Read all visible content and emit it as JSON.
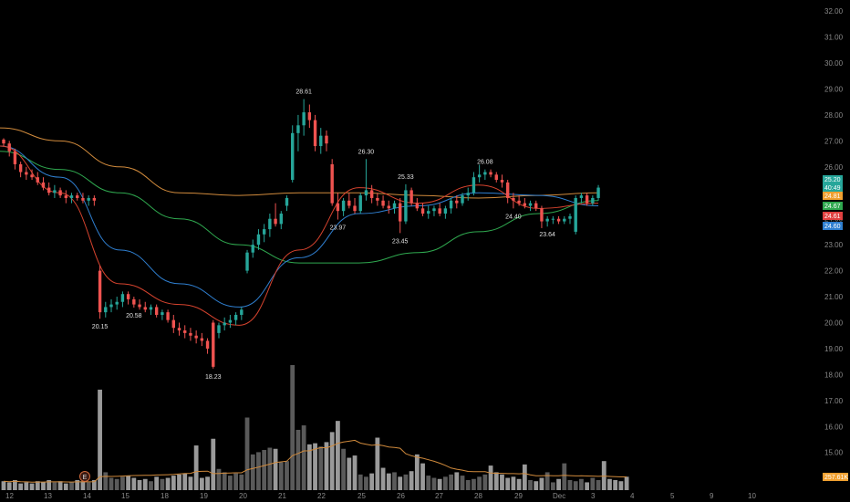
{
  "chart_data": {
    "type": "candlestick",
    "y_axis": {
      "labels": [
        "32.00",
        "31.00",
        "30.00",
        "29.00",
        "28.00",
        "27.00",
        "26.00",
        "25.00",
        "24.00",
        "23.00",
        "22.00",
        "21.00",
        "20.00",
        "19.00",
        "18.00",
        "17.00",
        "16.00",
        "15.00",
        "14.00"
      ],
      "values": [
        32,
        31,
        30,
        29,
        28,
        27,
        26,
        25,
        24,
        23,
        22,
        21,
        20,
        19,
        18,
        17,
        16,
        15,
        14
      ],
      "range": [
        13.55,
        32.25
      ]
    },
    "x_axis": {
      "labels": [
        "12",
        "13",
        "14",
        "15",
        "18",
        "19",
        "20",
        "21",
        "22",
        "25",
        "26",
        "27",
        "28",
        "29",
        "Dec",
        "3",
        "4",
        "5",
        "9",
        "10"
      ]
    },
    "candles": [
      [
        27.05,
        27.1,
        26.8,
        26.9
      ],
      [
        26.9,
        27.0,
        26.4,
        26.6
      ],
      [
        26.6,
        26.7,
        25.9,
        26.1
      ],
      [
        26.1,
        26.2,
        25.6,
        25.8
      ],
      [
        25.8,
        26.0,
        25.5,
        25.7
      ],
      [
        25.7,
        25.9,
        25.5,
        25.6
      ],
      [
        25.6,
        25.8,
        25.3,
        25.4
      ],
      [
        25.4,
        25.6,
        25.1,
        25.2
      ],
      [
        25.2,
        25.4,
        24.9,
        25.0
      ],
      [
        25.0,
        25.3,
        24.8,
        25.1
      ],
      [
        25.1,
        25.2,
        24.8,
        24.9
      ],
      [
        24.9,
        25.1,
        24.6,
        24.8
      ],
      [
        24.8,
        25.0,
        24.6,
        24.9
      ],
      [
        24.9,
        25.0,
        24.7,
        24.8
      ],
      [
        24.8,
        25.0,
        24.6,
        24.7
      ],
      [
        24.7,
        24.9,
        24.5,
        24.8
      ],
      [
        24.8,
        24.9,
        24.5,
        24.7
      ],
      [
        22.0,
        22.2,
        20.15,
        20.4
      ],
      [
        20.4,
        20.8,
        20.2,
        20.6
      ],
      [
        20.6,
        20.9,
        20.4,
        20.7
      ],
      [
        20.7,
        21.0,
        20.5,
        20.8
      ],
      [
        20.8,
        21.2,
        20.6,
        21.1
      ],
      [
        21.1,
        21.2,
        20.7,
        20.9
      ],
      [
        20.9,
        21.0,
        20.58,
        20.7
      ],
      [
        20.7,
        20.9,
        20.5,
        20.6
      ],
      [
        20.6,
        20.8,
        20.4,
        20.5
      ],
      [
        20.5,
        20.7,
        20.3,
        20.6
      ],
      [
        20.6,
        20.7,
        20.2,
        20.3
      ],
      [
        20.3,
        20.5,
        20.1,
        20.4
      ],
      [
        20.4,
        20.5,
        20.0,
        20.1
      ],
      [
        20.1,
        20.3,
        19.6,
        19.8
      ],
      [
        19.8,
        20.0,
        19.5,
        19.7
      ],
      [
        19.7,
        19.9,
        19.4,
        19.6
      ],
      [
        19.6,
        19.8,
        19.3,
        19.5
      ],
      [
        19.5,
        19.7,
        19.2,
        19.4
      ],
      [
        19.4,
        19.6,
        19.1,
        19.3
      ],
      [
        19.3,
        19.4,
        18.8,
        19.0
      ],
      [
        20.0,
        20.1,
        18.23,
        18.3
      ],
      [
        19.6,
        20.0,
        19.4,
        19.9
      ],
      [
        19.9,
        20.2,
        19.7,
        20.0
      ],
      [
        20.0,
        20.3,
        19.8,
        20.1
      ],
      [
        20.1,
        20.4,
        19.9,
        20.3
      ],
      [
        20.3,
        20.6,
        20.1,
        20.5
      ],
      [
        22.0,
        22.8,
        21.9,
        22.7
      ],
      [
        22.7,
        23.2,
        22.5,
        23.0
      ],
      [
        23.0,
        23.6,
        22.8,
        23.4
      ],
      [
        23.4,
        23.8,
        23.1,
        23.6
      ],
      [
        23.6,
        24.2,
        23.3,
        24.0
      ],
      [
        24.0,
        24.6,
        23.7,
        23.8
      ],
      [
        23.8,
        24.3,
        23.6,
        24.2
      ],
      [
        24.5,
        24.9,
        24.3,
        24.8
      ],
      [
        25.5,
        27.6,
        25.4,
        27.3
      ],
      [
        27.3,
        28.0,
        26.6,
        27.6
      ],
      [
        27.6,
        28.61,
        27.2,
        28.1
      ],
      [
        28.1,
        28.4,
        27.5,
        27.8
      ],
      [
        27.8,
        28.0,
        26.6,
        26.8
      ],
      [
        26.8,
        27.5,
        26.5,
        27.2
      ],
      [
        27.2,
        27.4,
        26.6,
        26.9
      ],
      [
        26.1,
        26.3,
        24.5,
        24.6
      ],
      [
        24.6,
        25.0,
        23.97,
        24.3
      ],
      [
        24.3,
        24.8,
        24.1,
        24.7
      ],
      [
        24.7,
        25.0,
        24.4,
        24.5
      ],
      [
        24.5,
        24.8,
        24.2,
        24.3
      ],
      [
        24.3,
        25.0,
        24.2,
        24.9
      ],
      [
        24.9,
        26.3,
        24.7,
        25.1
      ],
      [
        25.1,
        25.3,
        24.6,
        24.8
      ],
      [
        24.8,
        25.0,
        24.5,
        24.7
      ],
      [
        24.7,
        24.9,
        24.4,
        24.5
      ],
      [
        24.5,
        24.7,
        24.2,
        24.4
      ],
      [
        24.4,
        24.7,
        24.2,
        24.6
      ],
      [
        24.6,
        24.8,
        23.45,
        23.9
      ],
      [
        23.9,
        25.33,
        23.8,
        25.1
      ],
      [
        25.1,
        25.2,
        24.5,
        24.6
      ],
      [
        24.6,
        24.8,
        24.3,
        24.4
      ],
      [
        24.4,
        24.6,
        24.1,
        24.2
      ],
      [
        24.2,
        24.5,
        24.0,
        24.3
      ],
      [
        24.3,
        24.5,
        24.1,
        24.4
      ],
      [
        24.4,
        24.6,
        24.1,
        24.2
      ],
      [
        24.2,
        24.5,
        24.0,
        24.4
      ],
      [
        24.4,
        24.8,
        24.2,
        24.7
      ],
      [
        24.7,
        24.9,
        24.4,
        24.6
      ],
      [
        24.6,
        25.0,
        24.5,
        24.9
      ],
      [
        24.9,
        25.2,
        24.7,
        25.0
      ],
      [
        25.0,
        25.8,
        24.9,
        25.6
      ],
      [
        25.6,
        26.08,
        25.4,
        25.7
      ],
      [
        25.7,
        25.9,
        25.5,
        25.8
      ],
      [
        25.8,
        25.9,
        25.6,
        25.7
      ],
      [
        25.7,
        25.8,
        25.4,
        25.5
      ],
      [
        25.5,
        25.7,
        25.2,
        25.4
      ],
      [
        25.4,
        25.5,
        24.6,
        24.8
      ],
      [
        24.8,
        25.0,
        24.4,
        24.7
      ],
      [
        24.7,
        24.9,
        24.5,
        24.6
      ],
      [
        24.6,
        24.8,
        24.4,
        24.5
      ],
      [
        24.5,
        24.7,
        24.3,
        24.6
      ],
      [
        24.6,
        24.7,
        24.3,
        24.4
      ],
      [
        24.4,
        24.5,
        23.64,
        23.9
      ],
      [
        23.9,
        24.1,
        23.7,
        24.0
      ],
      [
        24.0,
        24.1,
        23.8,
        24.0
      ],
      [
        24.0,
        24.1,
        23.8,
        23.9
      ],
      [
        23.9,
        24.1,
        23.8,
        24.0
      ],
      [
        24.0,
        24.2,
        23.8,
        24.1
      ],
      [
        23.5,
        24.9,
        23.4,
        24.8
      ],
      [
        24.8,
        25.0,
        24.6,
        24.9
      ],
      [
        24.9,
        25.0,
        24.5,
        24.6
      ],
      [
        24.6,
        24.9,
        24.5,
        24.8
      ],
      [
        24.8,
        25.3,
        24.7,
        25.2
      ]
    ],
    "volume": [
      0.8,
      0.7,
      0.9,
      0.6,
      0.7,
      0.6,
      0.8,
      0.7,
      0.9,
      0.7,
      0.8,
      0.6,
      0.7,
      0.9,
      0.8,
      0.7,
      0.9,
      9.0,
      1.6,
      1.1,
      1.0,
      1.2,
      1.3,
      1.1,
      0.9,
      1.0,
      0.8,
      1.2,
      1.0,
      1.1,
      1.3,
      1.4,
      1.5,
      1.2,
      4.0,
      1.1,
      1.2,
      4.6,
      1.9,
      1.6,
      1.3,
      1.5,
      1.4,
      6.5,
      3.2,
      3.4,
      3.6,
      3.8,
      3.7,
      2.5,
      2.6,
      11.2,
      5.4,
      5.8,
      4.1,
      4.2,
      3.9,
      4.3,
      5.2,
      6.2,
      3.7,
      2.9,
      3.1,
      1.4,
      1.2,
      1.5,
      4.7,
      2.0,
      1.5,
      1.6,
      1.2,
      1.4,
      1.7,
      3.2,
      2.4,
      1.3,
      1.1,
      1.0,
      1.2,
      1.4,
      1.6,
      1.3,
      0.9,
      1.0,
      1.2,
      1.4,
      2.2,
      1.6,
      1.4,
      1.1,
      1.2,
      1.0,
      2.3,
      0.9,
      0.8,
      1.1,
      1.6,
      0.7,
      1.0,
      2.4,
      0.9,
      0.8,
      1.0,
      0.7,
      1.1,
      0.9,
      2.6,
      1.0,
      0.9,
      0.8,
      1.2
    ],
    "moving_averages": [
      {
        "color": "#d08a3c",
        "values": [
          27.5,
          27.0,
          26.0,
          25.0,
          24.9,
          25.0,
          25.0,
          24.9,
          24.8,
          24.9,
          25.0
        ]
      },
      {
        "color": "#2fa84f",
        "values": [
          26.6,
          25.9,
          25.0,
          24.0,
          23.0,
          22.3,
          22.3,
          22.7,
          23.5,
          24.2,
          24.7
        ]
      },
      {
        "color": "#2f7fd0",
        "values": [
          26.8,
          25.6,
          22.8,
          21.5,
          20.6,
          22.5,
          24.2,
          24.5,
          25.0,
          24.9,
          24.5
        ]
      },
      {
        "color": "#d6432e",
        "values": [
          26.8,
          25.0,
          21.5,
          20.7,
          19.9,
          22.8,
          25.2,
          24.6,
          25.3,
          24.4,
          24.6
        ]
      }
    ],
    "annotations": [
      {
        "text": "20.15",
        "at": 17,
        "pos": "below"
      },
      {
        "text": "20.58",
        "at": 23,
        "pos": "below"
      },
      {
        "text": "18.23",
        "at": 37,
        "pos": "below"
      },
      {
        "text": "28.61",
        "at": 53,
        "pos": "above"
      },
      {
        "text": "23.97",
        "at": 59,
        "pos": "below"
      },
      {
        "text": "26.30",
        "at": 64,
        "pos": "above"
      },
      {
        "text": "23.45",
        "at": 70,
        "pos": "below"
      },
      {
        "text": "25.33",
        "at": 71,
        "pos": "above"
      },
      {
        "text": "26.08",
        "at": 85,
        "pos": "above"
      },
      {
        "text": "24.40",
        "at": 90,
        "pos": "below"
      },
      {
        "text": "23.64",
        "at": 96,
        "pos": "below"
      }
    ],
    "price_tags": [
      {
        "text": "25.20",
        "value": 25.2,
        "color": "#26a69a"
      },
      {
        "text": "40:49",
        "value": 24.86,
        "color": "#26a69a"
      },
      {
        "text": "24.81",
        "value": 24.81,
        "color": "#f0a030"
      },
      {
        "text": "24.67",
        "value": 24.67,
        "color": "#2fa84f"
      },
      {
        "text": "24.61",
        "value": 24.61,
        "color": "#e04040"
      },
      {
        "text": "24.60",
        "value": 24.6,
        "color": "#2f7fd0"
      }
    ],
    "volume_tag": {
      "text": "257.61K",
      "color": "#f0a030"
    },
    "earnings_marker": "E",
    "colors": {
      "up": "#26a69a",
      "down": "#ef5350",
      "background": "#000000",
      "axis_text": "#8a8a8a"
    }
  }
}
